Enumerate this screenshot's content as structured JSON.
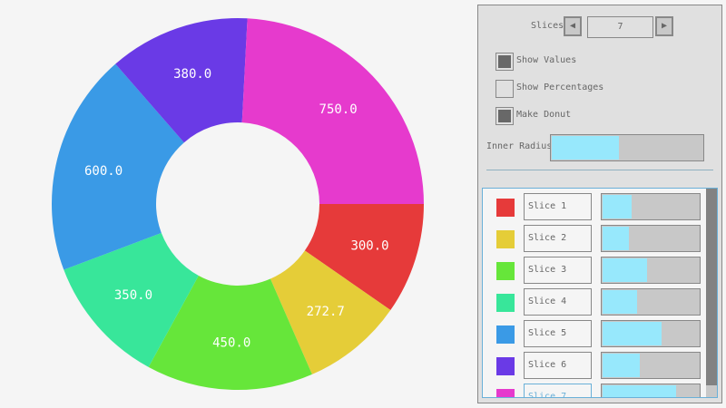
{
  "chart_data": {
    "type": "pie",
    "donut": true,
    "start_angle_deg": 0,
    "direction": "clockwise",
    "categories": [
      "Slice 1",
      "Slice 2",
      "Slice 3",
      "Slice 4",
      "Slice 5",
      "Slice 6",
      "Slice 7"
    ],
    "values": [
      300.0,
      272.7,
      450.0,
      350.0,
      600.0,
      380.0,
      750.0
    ],
    "labels": [
      "300.0",
      "272.7",
      "450.0",
      "350.0",
      "600.0",
      "380.0",
      "750.0"
    ],
    "colors": [
      "#e63a3a",
      "#e5cd38",
      "#66e63a",
      "#38e69a",
      "#3a9ae6",
      "#6a3ae6",
      "#e63acd"
    ]
  },
  "panel": {
    "slices_label": "Slices",
    "slices_value": "7",
    "prev_icon": "triangle-left",
    "next_icon": "triangle-right",
    "show_values": {
      "label": "Show Values",
      "checked": true
    },
    "show_percentages": {
      "label": "Show Percentages",
      "checked": false
    },
    "make_donut": {
      "label": "Make Donut",
      "checked": true
    },
    "inner_radius": {
      "label": "Inner Radius",
      "value": 0.44
    },
    "slider_max": 1000,
    "items": [
      {
        "name": "Slice 1",
        "value": 300.0,
        "color": "#e63a3a"
      },
      {
        "name": "Slice 2",
        "value": 272.7,
        "color": "#e5cd38"
      },
      {
        "name": "Slice 3",
        "value": 450.0,
        "color": "#66e63a"
      },
      {
        "name": "Slice 4",
        "value": 350.0,
        "color": "#38e69a"
      },
      {
        "name": "Slice 5",
        "value": 600.0,
        "color": "#3a9ae6"
      },
      {
        "name": "Slice 6",
        "value": 380.0,
        "color": "#6a3ae6"
      },
      {
        "name": "Slice 7",
        "value": 750.0,
        "color": "#e63acd"
      }
    ]
  }
}
